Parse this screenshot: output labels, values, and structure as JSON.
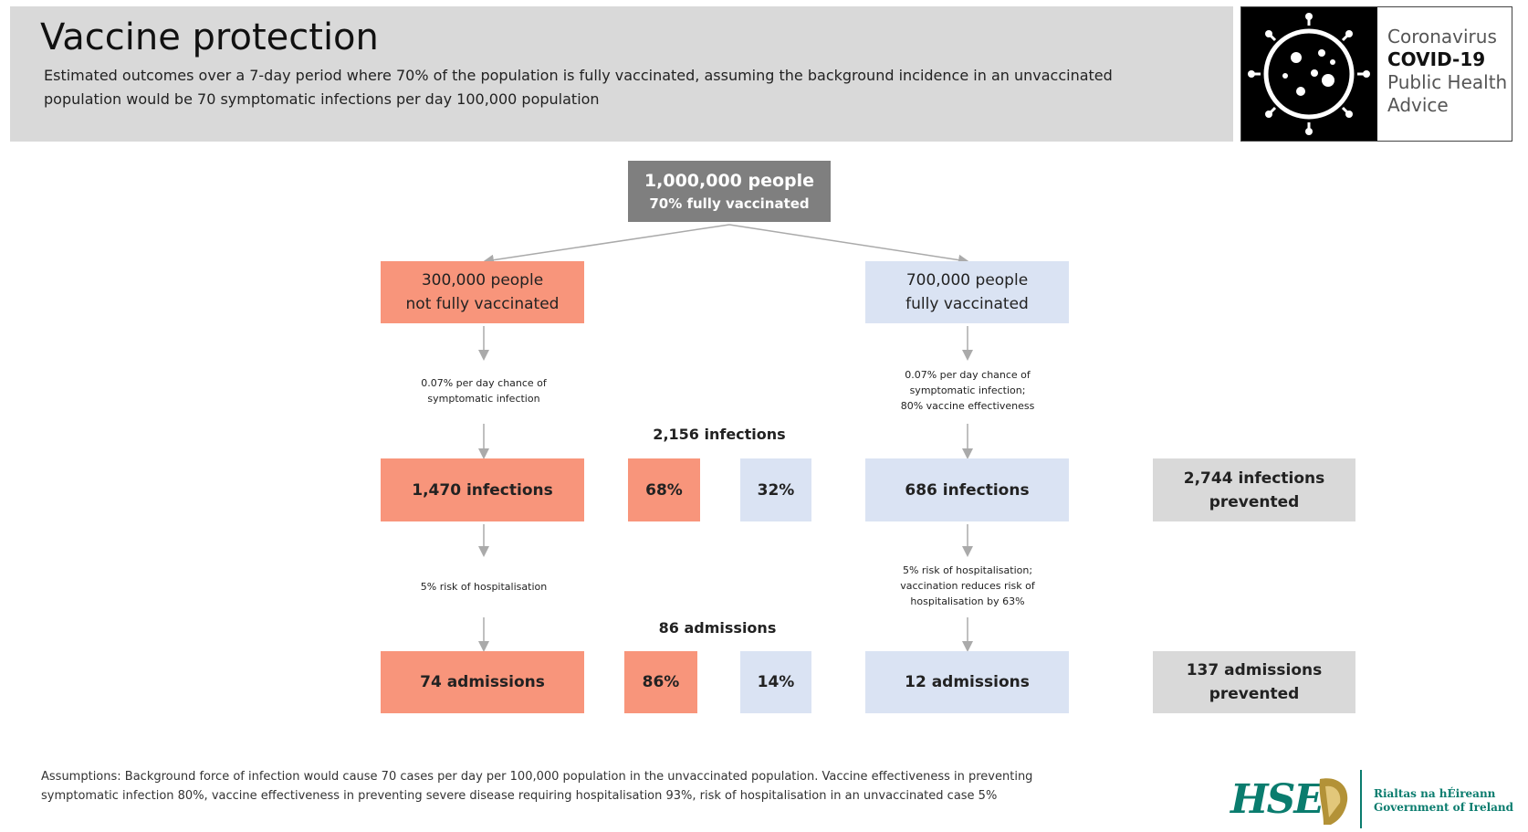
{
  "header": {
    "title": "Vaccine protection",
    "subtitle": [
      "Estimated outcomes over a 7-day period where 70% of the population is fully vaccinated, assuming the background incidence in an unvaccinated",
      "population would be 70 symptomatic infections per day 100,000 population"
    ]
  },
  "logo": {
    "lines": [
      "Coronavirus",
      "COVID-19",
      "Public Health",
      "Advice"
    ]
  },
  "nodes": [
    {
      "lines": [
        "1,000,000 people",
        "70% fully vaccinated"
      ]
    },
    {
      "lines": [
        "300,000 people",
        "not fully vaccinated"
      ]
    },
    {
      "lines": [
        "700,000 people",
        "fully vaccinated"
      ]
    },
    {
      "lines": [
        "1,470 infections"
      ]
    },
    {
      "lines": [
        "68%"
      ]
    },
    {
      "lines": [
        "32%"
      ]
    },
    {
      "lines": [
        "686 infections"
      ]
    },
    {
      "lines": [
        "2,744 infections",
        "prevented"
      ]
    },
    {
      "lines": [
        "74 admissions"
      ]
    },
    {
      "lines": [
        "86%"
      ]
    },
    {
      "lines": [
        "14%"
      ]
    },
    {
      "lines": [
        "12 admissions"
      ]
    },
    {
      "lines": [
        "137 admissions",
        "prevented"
      ]
    }
  ],
  "labels": [
    {
      "lines": [
        "0.07% per day chance of",
        "symptomatic infection"
      ]
    },
    {
      "lines": [
        "0.07% per day chance of",
        "symptomatic infection;",
        "80% vaccine effectiveness"
      ]
    },
    {
      "lines": [
        "2,156 infections"
      ]
    },
    {
      "lines": [
        "5% risk of hospitalisation"
      ]
    },
    {
      "lines": [
        "5% risk of hospitalisation;",
        "vaccination reduces risk of",
        "hospitalisation by 63%"
      ]
    },
    {
      "lines": [
        "86 admissions"
      ]
    }
  ],
  "footer": {
    "assumptions": [
      "Assumptions: Background force of infection would cause 70 cases per day per 100,000 population in the unvaccinated population. Vaccine effectiveness in preventing",
      "symptomatic infection 80%, vaccine effectiveness in preventing severe disease requiring hospitalisation 93%, risk of hospitalisation in an unvaccinated case 5%"
    ],
    "hse": "HSE",
    "government": [
      "Rialtas na hÉireann",
      "Government of Ireland"
    ]
  }
}
